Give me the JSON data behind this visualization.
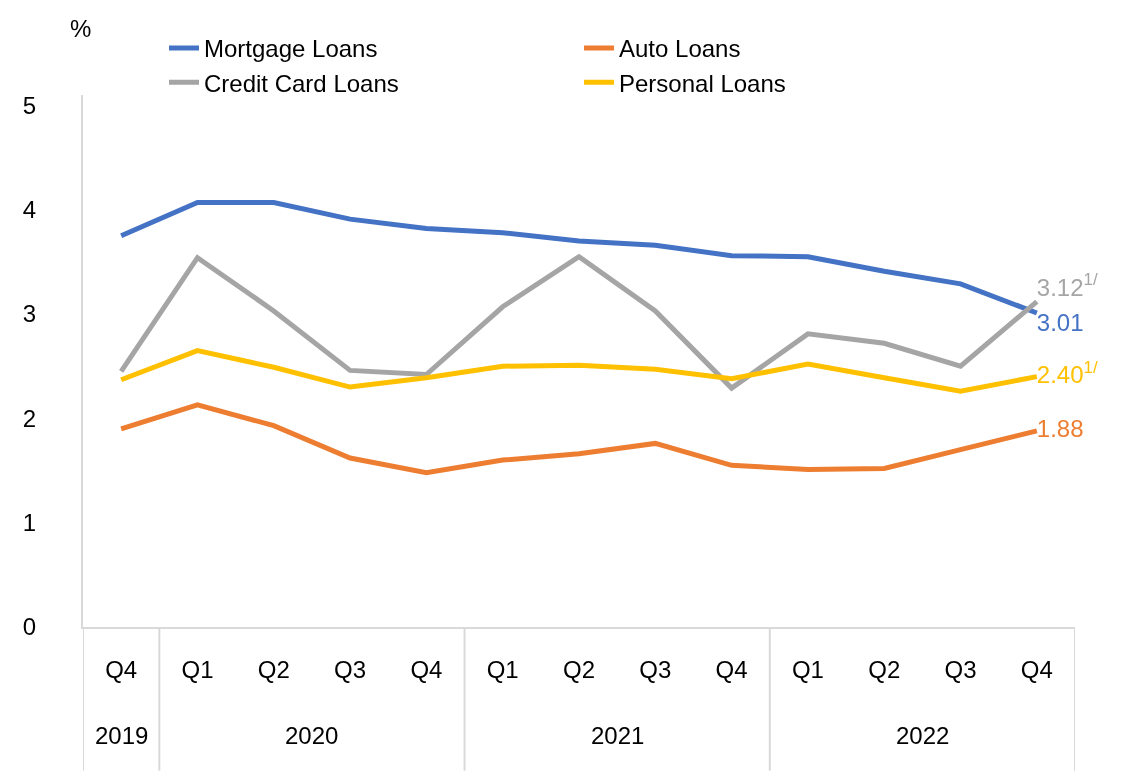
{
  "chart_data": {
    "type": "line",
    "ylabel": "%",
    "categories": [
      "Q4",
      "Q1",
      "Q2",
      "Q3",
      "Q4",
      "Q1",
      "Q2",
      "Q3",
      "Q4",
      "Q1",
      "Q2",
      "Q3",
      "Q4"
    ],
    "annotations": [
      "2019",
      "2020",
      "2021",
      "2022"
    ],
    "ylim": [
      0,
      5.1
    ],
    "yticks": [
      0,
      1,
      2,
      3,
      4,
      5
    ],
    "grid": false,
    "legend": "top",
    "marker": "none",
    "line_style": "solid",
    "series": [
      {
        "name": "Mortgage Loans",
        "color": "#4472c4",
        "values": [
          3.75,
          4.07,
          4.07,
          3.91,
          3.82,
          3.78,
          3.7,
          3.66,
          3.56,
          3.55,
          3.41,
          3.29,
          3.01
        ],
        "value_labels": [
          null,
          null,
          null,
          null,
          null,
          null,
          null,
          null,
          null,
          null,
          null,
          null,
          "3.01"
        ]
      },
      {
        "name": "Auto Loans",
        "color": "#ed7d31",
        "values": [
          1.9,
          2.13,
          1.93,
          1.62,
          1.48,
          1.6,
          1.66,
          1.76,
          1.55,
          1.51,
          1.52,
          1.7,
          1.88
        ],
        "value_labels": [
          null,
          null,
          null,
          null,
          null,
          null,
          null,
          null,
          null,
          null,
          null,
          null,
          "1.88"
        ]
      },
      {
        "name": "Credit Card Loans",
        "color": "#a5a5a5",
        "values": [
          2.45,
          3.54,
          3.03,
          2.46,
          2.42,
          3.07,
          3.55,
          3.03,
          2.29,
          2.81,
          2.72,
          2.5,
          3.12
        ],
        "value_labels": [
          null,
          null,
          null,
          null,
          null,
          null,
          null,
          null,
          null,
          null,
          null,
          null,
          "3.12$^{1/}$"
        ]
      },
      {
        "name": "Personal Loans",
        "color": "#ffc000",
        "values": [
          2.37,
          2.65,
          2.49,
          2.3,
          2.39,
          2.5,
          2.51,
          2.47,
          2.38,
          2.52,
          2.39,
          2.26,
          2.4
        ],
        "value_labels": [
          null,
          null,
          null,
          null,
          null,
          null,
          null,
          null,
          null,
          null,
          null,
          null,
          "2.40$^{1/}$"
        ]
      }
    ]
  }
}
